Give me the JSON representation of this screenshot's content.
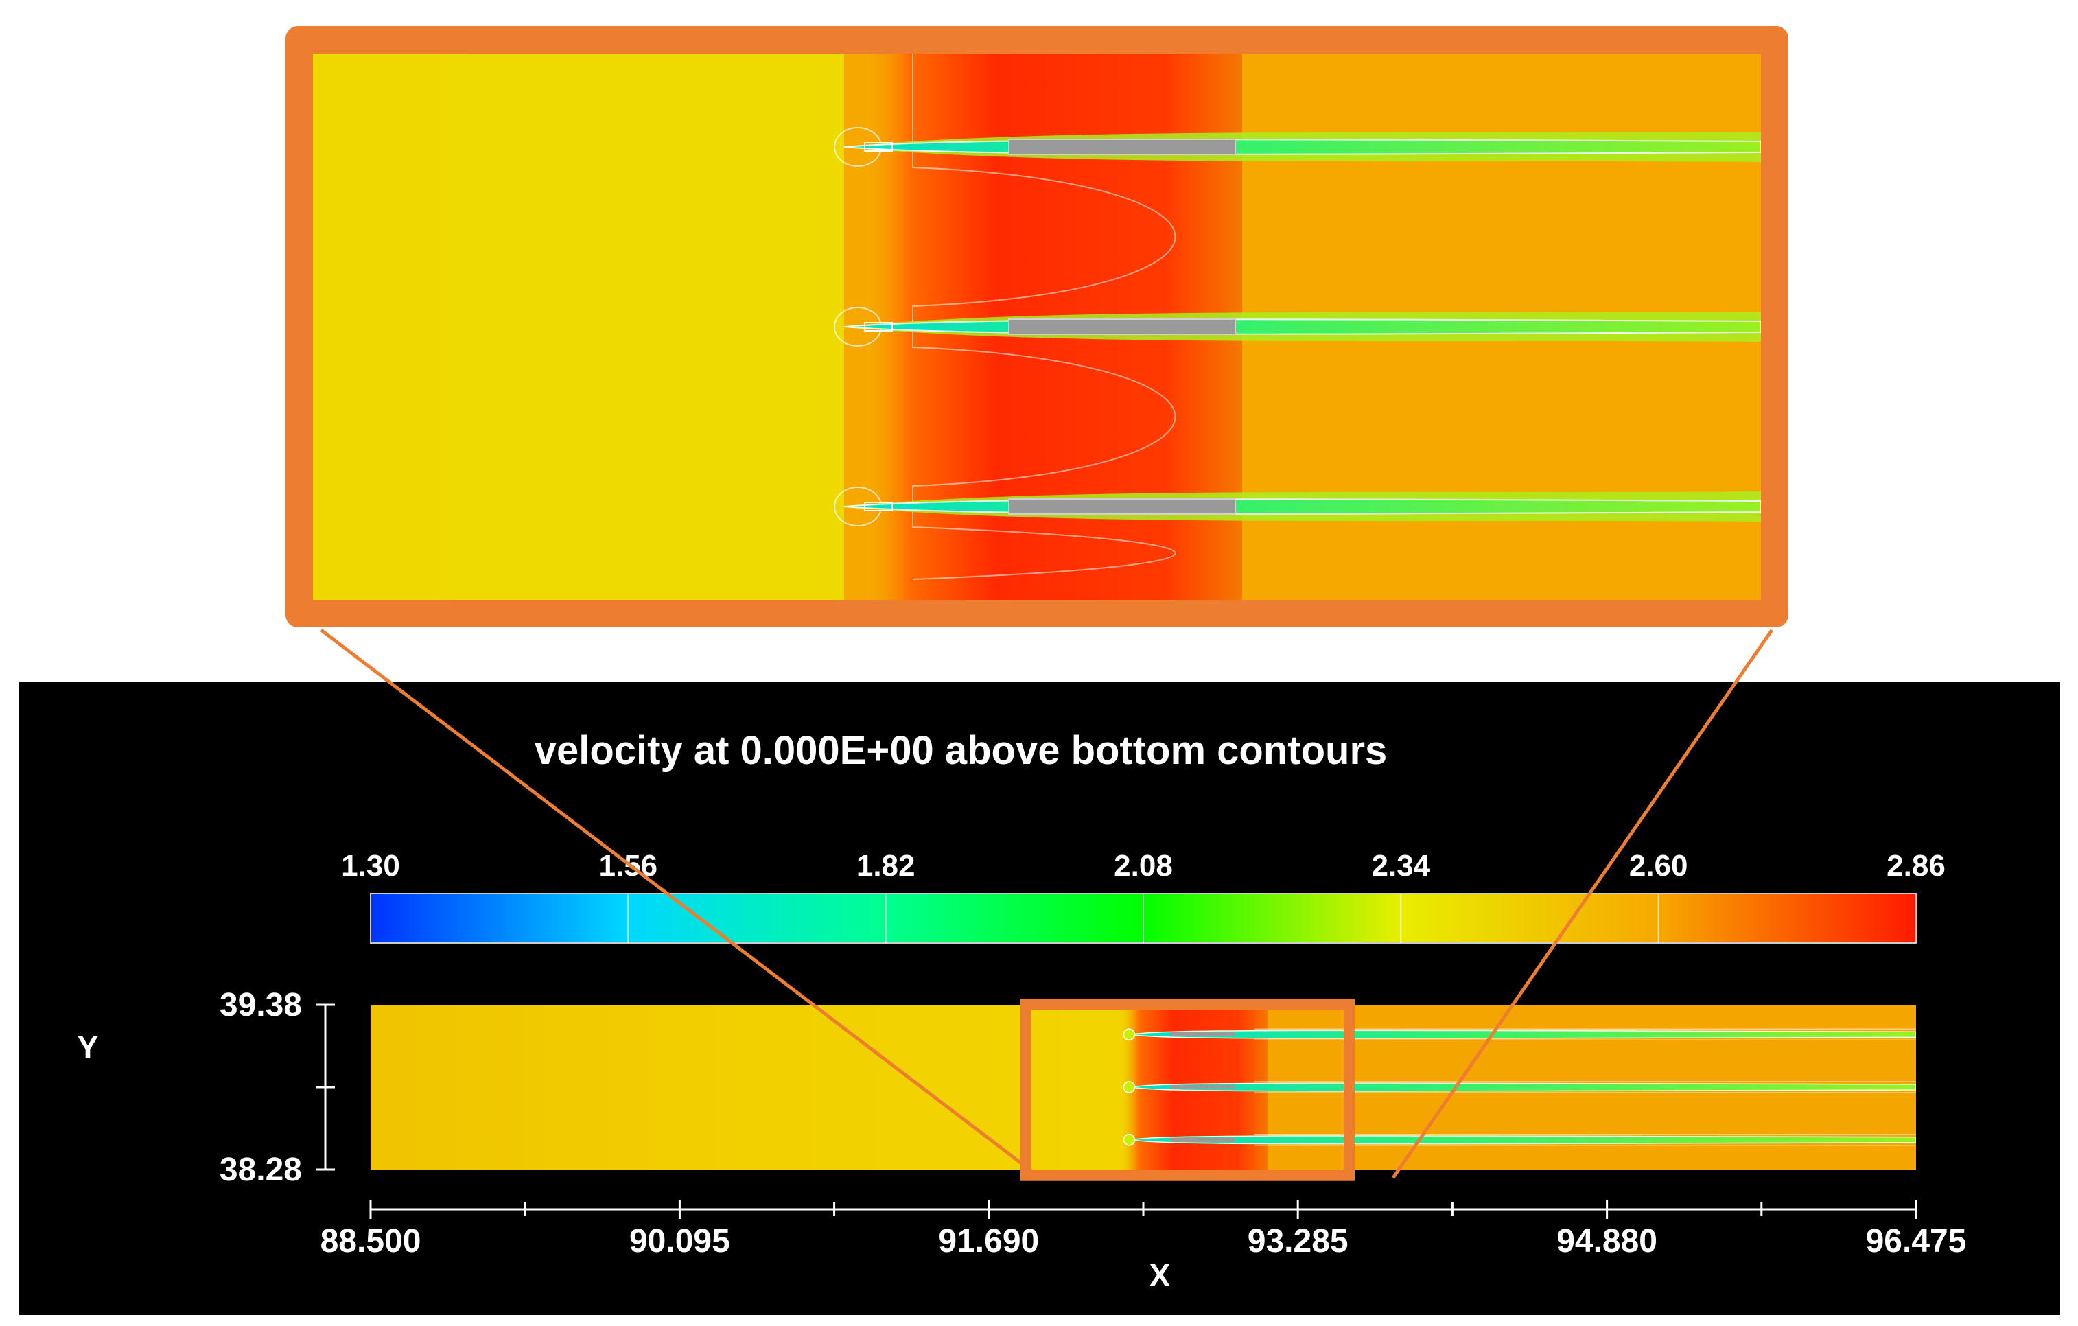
{
  "chart_data": {
    "type": "heatmap",
    "title": "velocity at 0.000E+00 above bottom contours",
    "xlabel": "X",
    "ylabel": "Y",
    "xlim": [
      88.5,
      96.475
    ],
    "ylim": [
      38.28,
      39.38
    ],
    "x_ticks": [
      "88.500",
      "90.095",
      "91.690",
      "93.285",
      "94.880",
      "96.475"
    ],
    "y_ticks": [
      "39.38",
      "38.28"
    ],
    "colorbar": {
      "min": 1.3,
      "max": 2.86,
      "ticks": [
        "1.30",
        "1.56",
        "1.82",
        "2.08",
        "2.34",
        "2.60",
        "2.86"
      ],
      "colormap": [
        "#0033ff",
        "#00d8ff",
        "#00ff90",
        "#00ff00",
        "#e8ee00",
        "#f7a800",
        "#ff1a00"
      ]
    },
    "objects_rows": 3,
    "zoom_region": {
      "x": [
        91.88,
        93.55
      ],
      "y": [
        38.24,
        39.38
      ]
    },
    "colors": {
      "background_panel": "#000000",
      "callout": "#ed7d31",
      "ambient_field": "#f0d000",
      "wake_field": "#f5a500",
      "high_velocity": "#ff2200",
      "low_velocity_wake": "#18e860",
      "structure": "#9a9a9a"
    }
  }
}
